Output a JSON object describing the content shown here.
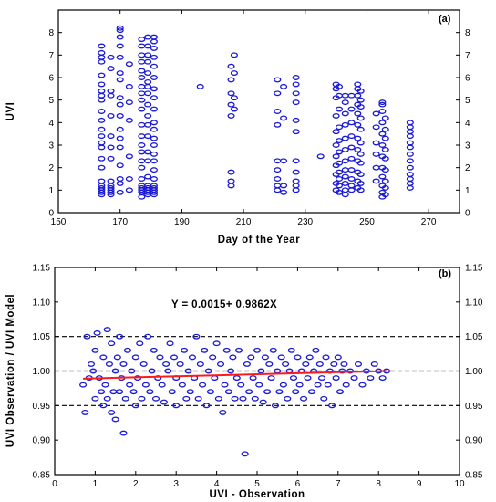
{
  "chart_data": [
    {
      "type": "scatter",
      "panel_label": "(a)",
      "xlabel": "Day of the Year",
      "ylabel": "UVI",
      "xlim": [
        150,
        280
      ],
      "ylim": [
        0,
        9
      ],
      "xticks": [
        150,
        170,
        190,
        210,
        230,
        250,
        270
      ],
      "yticks": [
        0,
        1,
        2,
        3,
        4,
        5,
        6,
        7,
        8
      ],
      "day_groups": [
        {
          "x": 164,
          "y": [
            0.8,
            0.9,
            1.0,
            1.1,
            1.2,
            1.4,
            2.0,
            2.4,
            2.9,
            3.1,
            3.4,
            3.7,
            4.1,
            4.5,
            5.0,
            5.2,
            5.4,
            5.7,
            6.1,
            6.7,
            6.9,
            7.1,
            7.4
          ]
        },
        {
          "x": 167,
          "y": [
            0.8,
            0.9,
            1.0,
            1.1,
            1.2,
            1.4,
            2.4,
            2.9,
            3.4,
            4.3,
            5.2,
            5.4,
            6.4,
            6.9
          ]
        },
        {
          "x": 170,
          "y": [
            0.9,
            1.3,
            1.5,
            2.1,
            2.9,
            3.3,
            3.7,
            4.3,
            4.8,
            5.1,
            5.9,
            6.2,
            6.9,
            7.4,
            7.8,
            8.1,
            8.2
          ]
        },
        {
          "x": 173,
          "y": [
            1.0,
            1.5,
            2.5,
            4.1,
            4.9,
            5.6,
            6.6
          ]
        },
        {
          "x": 177,
          "y": [
            0.7,
            0.9,
            1.0,
            1.1,
            1.2,
            1.5,
            2.0,
            2.3,
            2.7,
            3.0,
            3.4,
            3.9,
            4.6,
            5.0,
            5.3,
            5.6,
            6.0,
            6.3,
            6.7,
            7.0,
            7.4,
            7.7
          ]
        },
        {
          "x": 179,
          "y": [
            0.8,
            0.9,
            1.0,
            1.1,
            1.2,
            1.6,
            2.3,
            2.7,
            3.4,
            3.9,
            4.3,
            4.8,
            5.3,
            5.6,
            5.8,
            6.2,
            6.7,
            7.0,
            7.4,
            7.8
          ]
        },
        {
          "x": 181,
          "y": [
            0.8,
            0.9,
            1.0,
            1.1,
            1.2,
            1.5,
            1.9,
            2.3,
            2.6,
            3.0,
            3.3,
            3.7,
            4.0,
            4.6,
            5.1,
            5.5,
            6.0,
            6.5,
            6.9,
            7.3,
            7.6,
            7.8
          ]
        },
        {
          "x": 196,
          "y": [
            5.6
          ]
        },
        {
          "x": 206,
          "y": [
            1.2,
            1.4,
            1.8,
            4.3,
            4.8,
            5.3,
            5.9,
            6.5
          ]
        },
        {
          "x": 207,
          "y": [
            4.6,
            5.1,
            6.2,
            7.0
          ]
        },
        {
          "x": 221,
          "y": [
            1.0,
            1.2,
            1.5,
            1.9,
            2.3,
            3.9,
            4.5,
            5.3,
            5.9
          ]
        },
        {
          "x": 223,
          "y": [
            0.9,
            1.2,
            2.3,
            4.2,
            5.6
          ]
        },
        {
          "x": 227,
          "y": [
            1.0,
            1.2,
            1.4,
            1.8,
            2.3,
            3.6,
            4.1,
            4.9,
            5.3,
            5.7,
            6.0
          ]
        },
        {
          "x": 235,
          "y": [
            2.5
          ]
        },
        {
          "x": 240,
          "y": [
            1.0,
            1.3,
            1.7,
            2.1,
            2.5,
            3.0,
            3.6,
            4.3,
            5.1,
            5.5,
            5.7
          ]
        },
        {
          "x": 241,
          "y": [
            0.9,
            1.2,
            1.5,
            1.8,
            2.2,
            2.7,
            3.2,
            3.8,
            4.6,
            5.2,
            5.6
          ]
        },
        {
          "x": 243,
          "y": [
            0.8,
            1.0,
            1.3,
            1.6,
            1.9,
            2.3,
            2.8,
            3.3,
            3.9,
            4.4,
            4.9,
            5.2
          ]
        },
        {
          "x": 245,
          "y": [
            1.0,
            1.2,
            1.5,
            1.9,
            2.4,
            2.9,
            3.4,
            4.0,
            4.6,
            5.2
          ]
        },
        {
          "x": 247,
          "y": [
            1.1,
            1.4,
            1.8,
            2.3,
            2.8,
            3.3,
            3.9,
            4.4,
            4.8,
            5.2,
            5.5,
            5.7
          ]
        },
        {
          "x": 248,
          "y": [
            1.0,
            1.3,
            1.7,
            2.2,
            2.6,
            3.1,
            3.7,
            4.2,
            4.7,
            5.0,
            5.4
          ]
        },
        {
          "x": 253,
          "y": [
            1.4,
            2.0,
            2.6,
            3.1,
            3.8,
            4.4
          ]
        },
        {
          "x": 255,
          "y": [
            0.7,
            0.9,
            1.2,
            1.6,
            2.0,
            2.5,
            3.0,
            3.5,
            4.0,
            4.5,
            4.8,
            4.9
          ]
        },
        {
          "x": 256,
          "y": [
            0.8,
            1.1,
            1.4,
            1.9,
            2.4,
            2.8,
            3.3,
            3.7,
            4.2
          ]
        },
        {
          "x": 264,
          "y": [
            1.1,
            1.3,
            1.5,
            1.7,
            2.0,
            2.3,
            2.6,
            2.9,
            3.1,
            3.4,
            3.6,
            3.8,
            4.0
          ]
        }
      ]
    },
    {
      "type": "scatter",
      "panel_label": "(b)",
      "xlabel": "UVI - Observation",
      "ylabel": "UVI Observation / UVI Model",
      "xlim": [
        0,
        10
      ],
      "ylim": [
        0.85,
        1.15
      ],
      "xticks": [
        0,
        1,
        2,
        3,
        4,
        5,
        6,
        7,
        8,
        9,
        10
      ],
      "yticks": [
        0.85,
        0.9,
        0.95,
        1.0,
        1.05,
        1.1,
        1.15
      ],
      "equation": "Y = 0.0015+ 0.9862X",
      "reference_lines": [
        0.95,
        1.0,
        1.05
      ],
      "fit_line": {
        "x": [
          0.7,
          8.2
        ],
        "y": [
          0.989,
          1.0
        ],
        "color": "#ff1a1a"
      },
      "points": [
        [
          0.7,
          0.98
        ],
        [
          0.75,
          0.94
        ],
        [
          0.8,
          1.05
        ],
        [
          0.85,
          0.99
        ],
        [
          0.9,
          1.01
        ],
        [
          0.95,
          1.0
        ],
        [
          1.0,
          0.96
        ],
        [
          1.0,
          1.03
        ],
        [
          1.05,
          1.055
        ],
        [
          1.1,
          0.99
        ],
        [
          1.15,
          0.97
        ],
        [
          1.2,
          1.02
        ],
        [
          1.2,
          0.95
        ],
        [
          1.25,
          0.98
        ],
        [
          1.3,
          1.06
        ],
        [
          1.3,
          0.96
        ],
        [
          1.35,
          1.01
        ],
        [
          1.4,
          0.94
        ],
        [
          1.4,
          1.04
        ],
        [
          1.45,
          0.97
        ],
        [
          1.5,
          1.0
        ],
        [
          1.5,
          0.93
        ],
        [
          1.55,
          1.02
        ],
        [
          1.6,
          0.97
        ],
        [
          1.6,
          1.05
        ],
        [
          1.65,
          0.99
        ],
        [
          1.7,
          0.91
        ],
        [
          1.7,
          1.01
        ],
        [
          1.75,
          0.96
        ],
        [
          1.8,
          1.03
        ],
        [
          1.85,
          0.98
        ],
        [
          1.9,
          1.0
        ],
        [
          1.95,
          0.97
        ],
        [
          2.0,
          1.02
        ],
        [
          2.0,
          0.95
        ],
        [
          2.05,
          0.99
        ],
        [
          2.1,
          1.04
        ],
        [
          2.15,
          0.96
        ],
        [
          2.2,
          1.01
        ],
        [
          2.25,
          0.98
        ],
        [
          2.3,
          1.05
        ],
        [
          2.35,
          0.97
        ],
        [
          2.4,
          1.0
        ],
        [
          2.45,
          1.03
        ],
        [
          2.5,
          0.96
        ],
        [
          2.55,
          0.99
        ],
        [
          2.6,
          1.02
        ],
        [
          2.65,
          0.98
        ],
        [
          2.7,
          0.955
        ],
        [
          2.75,
          1.01
        ],
        [
          2.8,
          1.0
        ],
        [
          2.85,
          1.04
        ],
        [
          2.9,
          0.97
        ],
        [
          2.95,
          1.02
        ],
        [
          3.0,
          0.99
        ],
        [
          3.0,
          0.95
        ],
        [
          3.1,
          1.01
        ],
        [
          3.15,
          0.98
        ],
        [
          3.2,
          1.03
        ],
        [
          3.25,
          0.96
        ],
        [
          3.3,
          1.0
        ],
        [
          3.35,
          0.97
        ],
        [
          3.4,
          1.02
        ],
        [
          3.45,
          0.99
        ],
        [
          3.5,
          1.05
        ],
        [
          3.55,
          0.96
        ],
        [
          3.6,
          1.01
        ],
        [
          3.65,
          0.98
        ],
        [
          3.7,
          1.03
        ],
        [
          3.75,
          0.95
        ],
        [
          3.8,
          1.0
        ],
        [
          3.85,
          0.97
        ],
        [
          3.9,
          1.02
        ],
        [
          3.95,
          0.99
        ],
        [
          4.0,
          1.04
        ],
        [
          4.05,
          0.96
        ],
        [
          4.1,
          1.01
        ],
        [
          4.15,
          0.94
        ],
        [
          4.2,
          0.98
        ],
        [
          4.25,
          1.03
        ],
        [
          4.3,
          0.97
        ],
        [
          4.35,
          1.0
        ],
        [
          4.4,
          1.02
        ],
        [
          4.45,
          0.96
        ],
        [
          4.5,
          0.99
        ],
        [
          4.55,
          1.03
        ],
        [
          4.6,
          0.98
        ],
        [
          4.65,
          0.96
        ],
        [
          4.7,
          0.88
        ],
        [
          4.75,
          1.01
        ],
        [
          4.8,
          0.97
        ],
        [
          4.85,
          1.02
        ],
        [
          4.9,
          0.99
        ],
        [
          4.95,
          0.96
        ],
        [
          5.0,
          1.03
        ],
        [
          5.05,
          0.98
        ],
        [
          5.1,
          1.0
        ],
        [
          5.15,
          0.955
        ],
        [
          5.2,
          1.02
        ],
        [
          5.25,
          0.97
        ],
        [
          5.3,
          1.01
        ],
        [
          5.35,
          0.99
        ],
        [
          5.4,
          1.03
        ],
        [
          5.45,
          0.95
        ],
        [
          5.5,
          1.0
        ],
        [
          5.55,
          0.97
        ],
        [
          5.6,
          1.02
        ],
        [
          5.65,
          0.98
        ],
        [
          5.7,
          1.01
        ],
        [
          5.75,
          0.96
        ],
        [
          5.8,
          1.0
        ],
        [
          5.85,
          1.03
        ],
        [
          5.9,
          0.99
        ],
        [
          5.95,
          0.97
        ],
        [
          6.0,
          1.02
        ],
        [
          6.05,
          0.98
        ],
        [
          6.1,
          1.0
        ],
        [
          6.15,
          0.96
        ],
        [
          6.2,
          1.01
        ],
        [
          6.25,
          0.99
        ],
        [
          6.3,
          1.02
        ],
        [
          6.35,
          0.97
        ],
        [
          6.4,
          1.0
        ],
        [
          6.45,
          1.03
        ],
        [
          6.5,
          0.98
        ],
        [
          6.55,
          1.01
        ],
        [
          6.6,
          0.99
        ],
        [
          6.65,
          0.96
        ],
        [
          6.7,
          1.02
        ],
        [
          6.75,
          0.98
        ],
        [
          6.8,
          1.0
        ],
        [
          6.85,
          0.95
        ],
        [
          6.9,
          1.01
        ],
        [
          6.95,
          0.99
        ],
        [
          7.0,
          1.02
        ],
        [
          7.05,
          0.97
        ],
        [
          7.1,
          1.0
        ],
        [
          7.15,
          1.01
        ],
        [
          7.2,
          0.98
        ],
        [
          7.3,
          1.0
        ],
        [
          7.4,
          0.99
        ],
        [
          7.5,
          1.01
        ],
        [
          7.6,
          0.98
        ],
        [
          7.7,
          1.0
        ],
        [
          7.8,
          0.99
        ],
        [
          7.9,
          1.01
        ],
        [
          8.0,
          1.0
        ],
        [
          8.1,
          0.99
        ],
        [
          8.2,
          1.0
        ]
      ]
    }
  ]
}
